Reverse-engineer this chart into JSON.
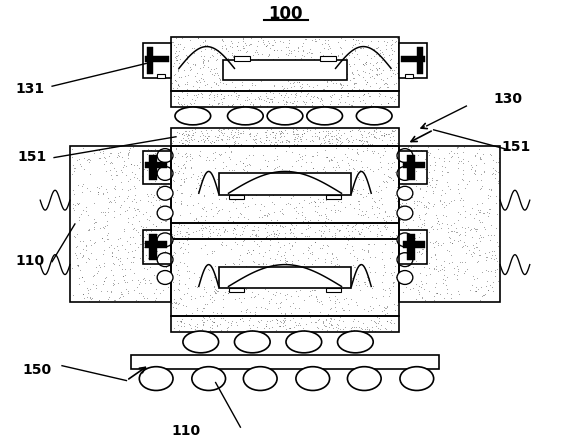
{
  "bg_color": "#ffffff",
  "line_color": "#000000",
  "stipple_color": "#aaaaaa",
  "lw": 1.2,
  "blw": 3.5,
  "title": "100",
  "labels": [
    "131",
    "130",
    "151",
    "151",
    "110",
    "150",
    "110"
  ]
}
